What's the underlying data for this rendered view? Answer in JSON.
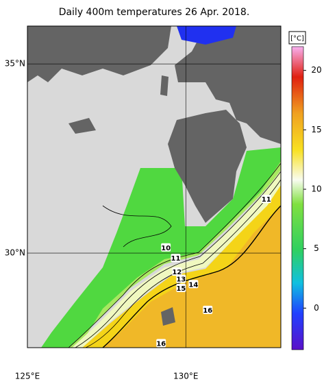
{
  "chart_data": {
    "type": "map",
    "title": "Daily 400m temperatures 26 Apr. 2018.",
    "xlim": [
      125,
      133
    ],
    "ylim": [
      27.5,
      36
    ],
    "xticks": [
      {
        "value": 125,
        "label": "125°E"
      },
      {
        "value": 130,
        "label": "130°E"
      }
    ],
    "yticks": [
      {
        "value": 30,
        "label": "30°N"
      },
      {
        "value": 35,
        "label": "35°N"
      }
    ],
    "colorbar": {
      "unit": "[°C]",
      "lim": [
        -3.5,
        22
      ],
      "ticks": [
        0,
        5,
        10,
        15,
        20
      ]
    },
    "contour_labels": [
      {
        "lon": 132.54,
        "lat": 31.43,
        "value": 11
      },
      {
        "lon": 129.37,
        "lat": 30.15,
        "value": 10
      },
      {
        "lon": 129.68,
        "lat": 29.87,
        "value": 11
      },
      {
        "lon": 129.72,
        "lat": 29.51,
        "value": 12
      },
      {
        "lon": 129.85,
        "lat": 29.32,
        "value": 13
      },
      {
        "lon": 130.24,
        "lat": 29.18,
        "value": 14
      },
      {
        "lon": 129.85,
        "lat": 29.08,
        "value": 15
      },
      {
        "lon": 130.69,
        "lat": 28.5,
        "value": 16
      },
      {
        "lon": 129.22,
        "lat": 27.62,
        "value": 16
      }
    ]
  }
}
